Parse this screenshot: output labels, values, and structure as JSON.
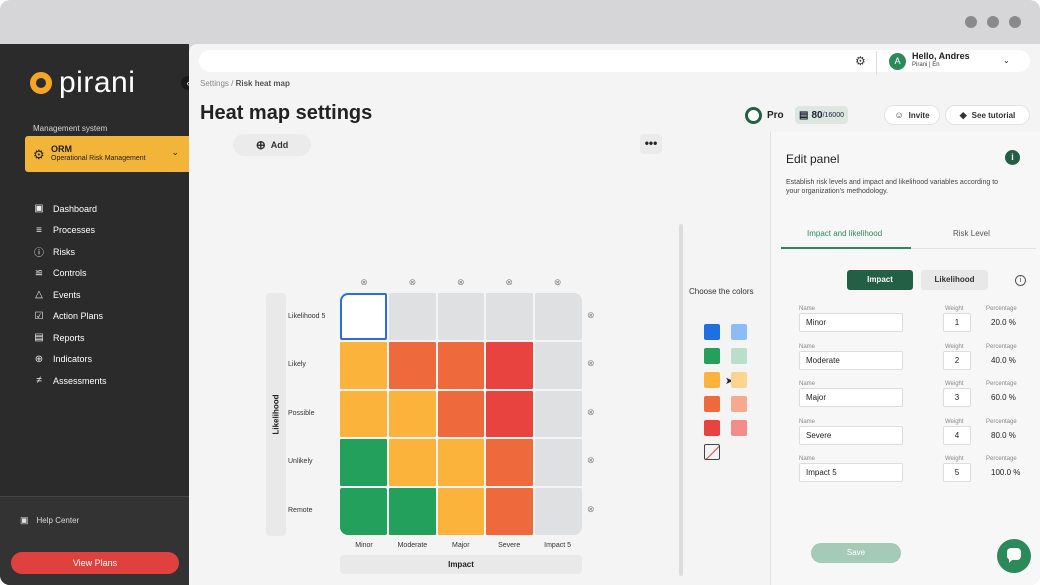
{
  "sidebar": {
    "logo_text": "pirani",
    "management_label": "Management system",
    "orm": {
      "title": "ORM",
      "subtitle": "Operational Risk Management"
    },
    "nav": [
      {
        "label": "Dashboard",
        "icon": "monitor-icon"
      },
      {
        "label": "Processes",
        "icon": "list-icon"
      },
      {
        "label": "Risks",
        "icon": "alert-circle-icon"
      },
      {
        "label": "Controls",
        "icon": "sliders-icon"
      },
      {
        "label": "Events",
        "icon": "warning-triangle-icon"
      },
      {
        "label": "Action Plans",
        "icon": "checkbox-icon"
      },
      {
        "label": "Reports",
        "icon": "chart-icon"
      },
      {
        "label": "Indicators",
        "icon": "crosshair-icon"
      },
      {
        "label": "Assessments",
        "icon": "checklist-icon"
      }
    ],
    "help": "Help Center",
    "view_plans": "View Plans"
  },
  "header": {
    "user_name": "Hello, Andres",
    "user_sub": "Pirani | En",
    "avatar_letter": "A",
    "breadcrumb_root": "Settings /",
    "breadcrumb_current": "Risk heat map",
    "title": "Heat map settings",
    "plan": "Pro",
    "count_main": "80",
    "count_total": "/16000",
    "invite": "Invite",
    "tutorial": "See tutorial"
  },
  "canvas": {
    "add": "Add",
    "more": "•••",
    "y_axis": "Likelihood",
    "x_axis": "Impact",
    "rows": [
      "Likelihood 5",
      "Likely",
      "Possible",
      "Unlikely",
      "Remote"
    ],
    "cols": [
      "Minor",
      "Moderate",
      "Major",
      "Severe",
      "Impact 5"
    ],
    "remove_glyph": "⊗",
    "cells": [
      [
        "#ffffff",
        "#dfe0e2",
        "#dfe0e2",
        "#dfe0e2",
        "#dfe0e2"
      ],
      [
        "#fbb33b",
        "#ee6a3d",
        "#ee6a3d",
        "#e8433f",
        "#dfe0e2"
      ],
      [
        "#fbb33b",
        "#fbb33b",
        "#ee6a3d",
        "#e8433f",
        "#dfe0e2"
      ],
      [
        "#22a05c",
        "#fbb33b",
        "#fbb33b",
        "#ee6a3d",
        "#dfe0e2"
      ],
      [
        "#22a05c",
        "#22a05c",
        "#fbb33b",
        "#ee6a3d",
        "#dfe0e2"
      ]
    ],
    "selected_border": "#2d6cdf"
  },
  "colors": {
    "title": "Choose the colors",
    "swatches": [
      [
        "#1f6fe0",
        "#8bbcf5"
      ],
      [
        "#22a05c",
        "#b9dec9"
      ],
      [
        "#fbb33b",
        "#fbd48f"
      ],
      [
        "#ee6a3d",
        "#f6a98d"
      ],
      [
        "#e8433f",
        "#f48c8a"
      ]
    ]
  },
  "edit_panel": {
    "title": "Edit panel",
    "description": "Establish risk levels and impact and likelihood variables according to your organization's methodology.",
    "tab_active": "Impact and likelihood",
    "tab_other": "Risk Level",
    "toggle_impact": "Impact",
    "toggle_likelihood": "Likelihood",
    "label_name": "Name",
    "label_weight": "Weight",
    "label_pct": "Percentage",
    "impacts": [
      {
        "name": "Minor",
        "weight": "1",
        "pct": "20.0 %"
      },
      {
        "name": "Moderate",
        "weight": "2",
        "pct": "40.0 %"
      },
      {
        "name": "Major",
        "weight": "3",
        "pct": "60.0 %"
      },
      {
        "name": "Severe",
        "weight": "4",
        "pct": "80.0 %"
      },
      {
        "name": "Impact 5",
        "weight": "5",
        "pct": "100.0 %"
      }
    ],
    "save": "Save"
  }
}
